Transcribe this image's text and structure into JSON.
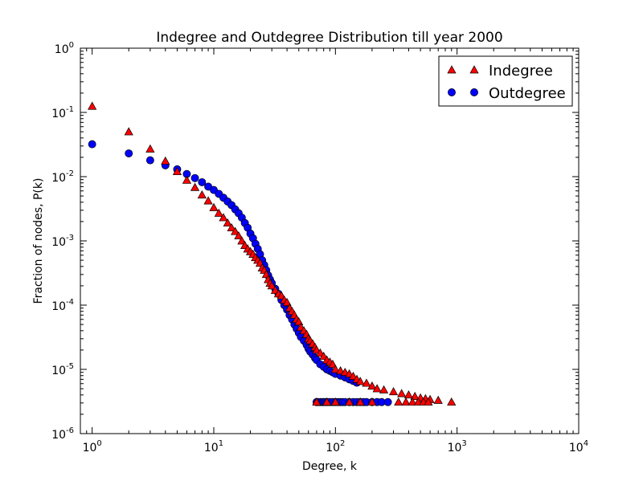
{
  "chart_data": {
    "type": "scatter",
    "title": "Indegree and Outdegree Distribution till year 2000",
    "xlabel": "Degree, k",
    "ylabel": "Fraction of nodes, P(k)",
    "xscale": "log",
    "yscale": "log",
    "xlim": [
      0.8,
      10000
    ],
    "ylim": [
      1e-06,
      1
    ],
    "grid": false,
    "legend_position": "top-right",
    "x_ticks": [
      {
        "value": 1,
        "base": "10",
        "exp": "0"
      },
      {
        "value": 10,
        "base": "10",
        "exp": "1"
      },
      {
        "value": 100,
        "base": "10",
        "exp": "2"
      },
      {
        "value": 1000,
        "base": "10",
        "exp": "3"
      },
      {
        "value": 10000,
        "base": "10",
        "exp": "4"
      }
    ],
    "y_ticks": [
      {
        "value": 1,
        "base": "10",
        "exp": "0"
      },
      {
        "value": 0.1,
        "base": "10",
        "exp": "-1"
      },
      {
        "value": 0.01,
        "base": "10",
        "exp": "-2"
      },
      {
        "value": 0.001,
        "base": "10",
        "exp": "-3"
      },
      {
        "value": 0.0001,
        "base": "10",
        "exp": "-4"
      },
      {
        "value": 1e-05,
        "base": "10",
        "exp": "-5"
      },
      {
        "value": 1e-06,
        "base": "10",
        "exp": "-6"
      }
    ],
    "series": [
      {
        "name": "Indegree",
        "marker": "triangle",
        "color": "#ff0000",
        "points": [
          [
            1,
            0.125
          ],
          [
            2,
            0.05
          ],
          [
            3,
            0.027
          ],
          [
            4,
            0.0175
          ],
          [
            5,
            0.012
          ],
          [
            6,
            0.0088
          ],
          [
            7,
            0.0068
          ],
          [
            8,
            0.0052
          ],
          [
            9,
            0.0042
          ],
          [
            10,
            0.0033
          ],
          [
            11,
            0.0027
          ],
          [
            12,
            0.0023
          ],
          [
            13,
            0.0019
          ],
          [
            14,
            0.0016
          ],
          [
            15,
            0.0014
          ],
          [
            16,
            0.0012
          ],
          [
            17,
            0.001
          ],
          [
            18,
            0.00085
          ],
          [
            19,
            0.00075
          ],
          [
            20,
            0.00068
          ],
          [
            21,
            0.00062
          ],
          [
            22,
            0.00055
          ],
          [
            23,
            0.0005
          ],
          [
            24,
            0.00045
          ],
          [
            25,
            0.00038
          ],
          [
            26,
            0.00035
          ],
          [
            27,
            0.0003
          ],
          [
            28,
            0.00025
          ],
          [
            29,
            0.00022
          ],
          [
            30,
            0.0002
          ],
          [
            32,
            0.00017
          ],
          [
            34,
            0.00015
          ],
          [
            36,
            0.00014
          ],
          [
            38,
            0.00012
          ],
          [
            40,
            0.00011
          ],
          [
            42,
            9e-05
          ],
          [
            44,
            8e-05
          ],
          [
            46,
            7e-05
          ],
          [
            48,
            6e-05
          ],
          [
            50,
            5.5e-05
          ],
          [
            52,
            4.5e-05
          ],
          [
            55,
            4e-05
          ],
          [
            58,
            3.5e-05
          ],
          [
            60,
            3e-05
          ],
          [
            62,
            2.8e-05
          ],
          [
            65,
            2.5e-05
          ],
          [
            68,
            2.2e-05
          ],
          [
            70,
            2e-05
          ],
          [
            75,
            1.8e-05
          ],
          [
            80,
            1.6e-05
          ],
          [
            85,
            1.4e-05
          ],
          [
            90,
            1.3e-05
          ],
          [
            95,
            1.2e-05
          ],
          [
            100,
            1e-05
          ],
          [
            110,
            9.5e-06
          ],
          [
            120,
            9e-06
          ],
          [
            130,
            8.5e-06
          ],
          [
            140,
            7.8e-06
          ],
          [
            150,
            7e-06
          ],
          [
            160,
            6.5e-06
          ],
          [
            180,
            6.1e-06
          ],
          [
            200,
            5.5e-06
          ],
          [
            220,
            5e-06
          ],
          [
            250,
            4.8e-06
          ],
          [
            300,
            4.5e-06
          ],
          [
            350,
            4.2e-06
          ],
          [
            400,
            4e-06
          ],
          [
            450,
            3.8e-06
          ],
          [
            500,
            3.6e-06
          ],
          [
            550,
            3.5e-06
          ],
          [
            600,
            3.4e-06
          ],
          [
            700,
            3.3e-06
          ],
          [
            900,
            3.1e-06
          ],
          [
            70,
            3.1e-06
          ],
          [
            85,
            3.1e-06
          ],
          [
            100,
            3.1e-06
          ],
          [
            130,
            3.1e-06
          ],
          [
            160,
            3.1e-06
          ],
          [
            200,
            3.1e-06
          ],
          [
            330,
            3.1e-06
          ],
          [
            380,
            3.1e-06
          ],
          [
            430,
            3.1e-06
          ],
          [
            480,
            3.1e-06
          ],
          [
            530,
            3.1e-06
          ],
          [
            580,
            3.1e-06
          ]
        ]
      },
      {
        "name": "Outdegree",
        "marker": "circle",
        "color": "#0000ff",
        "points": [
          [
            1,
            0.032
          ],
          [
            2,
            0.023
          ],
          [
            3,
            0.018
          ],
          [
            4,
            0.015
          ],
          [
            5,
            0.013
          ],
          [
            6,
            0.011
          ],
          [
            7,
            0.0095
          ],
          [
            8,
            0.0082
          ],
          [
            9,
            0.007
          ],
          [
            10,
            0.0062
          ],
          [
            11,
            0.0054
          ],
          [
            12,
            0.0047
          ],
          [
            13,
            0.0041
          ],
          [
            14,
            0.0036
          ],
          [
            15,
            0.0031
          ],
          [
            16,
            0.0027
          ],
          [
            17,
            0.0023
          ],
          [
            18,
            0.0019
          ],
          [
            19,
            0.0016
          ],
          [
            20,
            0.0013
          ],
          [
            21,
            0.0011
          ],
          [
            22,
            0.0009
          ],
          [
            23,
            0.00075
          ],
          [
            24,
            0.00062
          ],
          [
            25,
            0.0005
          ],
          [
            26,
            0.00042
          ],
          [
            27,
            0.00035
          ],
          [
            28,
            0.00029
          ],
          [
            29,
            0.00025
          ],
          [
            30,
            0.00022
          ],
          [
            32,
            0.00018
          ],
          [
            34,
            0.00015
          ],
          [
            36,
            0.00012
          ],
          [
            38,
            0.0001
          ],
          [
            40,
            8.5e-05
          ],
          [
            42,
            7e-05
          ],
          [
            44,
            6e-05
          ],
          [
            46,
            5e-05
          ],
          [
            48,
            4.3e-05
          ],
          [
            50,
            3.7e-05
          ],
          [
            52,
            3.2e-05
          ],
          [
            55,
            2.8e-05
          ],
          [
            58,
            2.4e-05
          ],
          [
            60,
            2.1e-05
          ],
          [
            62,
            1.9e-05
          ],
          [
            65,
            1.7e-05
          ],
          [
            68,
            1.5e-05
          ],
          [
            70,
            1.4e-05
          ],
          [
            75,
            1.2e-05
          ],
          [
            80,
            1.1e-05
          ],
          [
            85,
            1e-05
          ],
          [
            90,
            9.5e-06
          ],
          [
            95,
            9e-06
          ],
          [
            100,
            8.5e-06
          ],
          [
            110,
            8e-06
          ],
          [
            120,
            7.5e-06
          ],
          [
            130,
            7e-06
          ],
          [
            140,
            6.6e-06
          ],
          [
            150,
            6.2e-06
          ],
          [
            70,
            3.1e-06
          ],
          [
            72,
            3.1e-06
          ],
          [
            75,
            3.1e-06
          ],
          [
            78,
            3.1e-06
          ],
          [
            80,
            3.1e-06
          ],
          [
            83,
            3.1e-06
          ],
          [
            86,
            3.1e-06
          ],
          [
            90,
            3.1e-06
          ],
          [
            95,
            3.1e-06
          ],
          [
            100,
            3.1e-06
          ],
          [
            105,
            3.1e-06
          ],
          [
            110,
            3.1e-06
          ],
          [
            115,
            3.1e-06
          ],
          [
            120,
            3.1e-06
          ],
          [
            130,
            3.1e-06
          ],
          [
            140,
            3.1e-06
          ],
          [
            150,
            3.1e-06
          ],
          [
            160,
            3.1e-06
          ],
          [
            170,
            3.1e-06
          ],
          [
            180,
            3.1e-06
          ],
          [
            200,
            3.1e-06
          ],
          [
            220,
            3.1e-06
          ],
          [
            240,
            3.1e-06
          ],
          [
            270,
            3.1e-06
          ]
        ]
      }
    ]
  }
}
